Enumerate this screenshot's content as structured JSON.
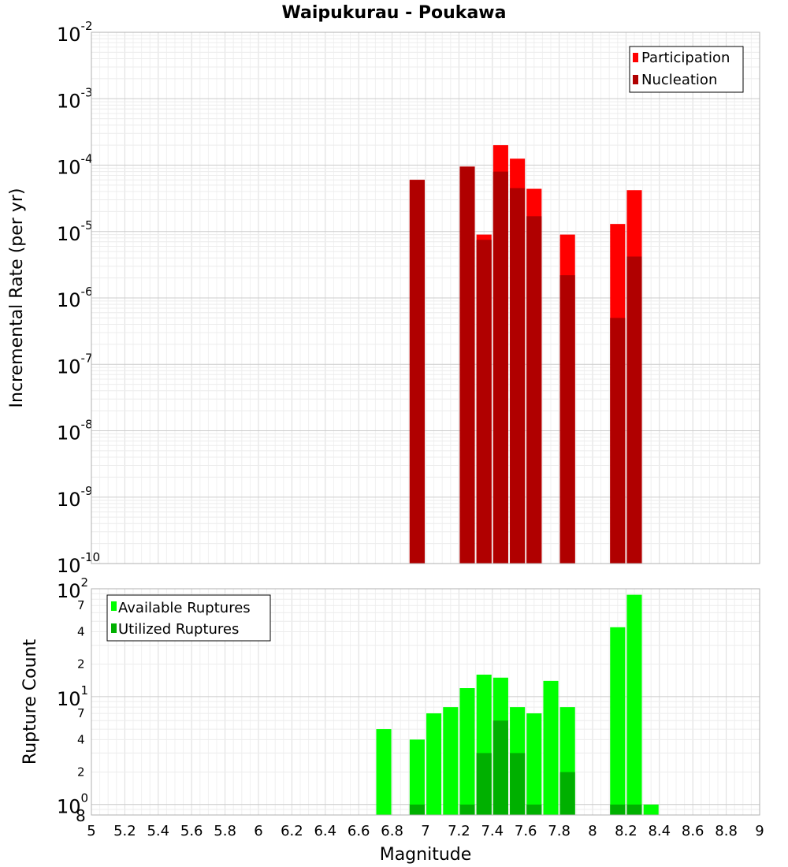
{
  "chart_data": [
    {
      "type": "bar",
      "panel": "top",
      "title": "Waipukurau - Poukawa",
      "ylabel": "Incremental Rate (per yr)",
      "yscale": "log",
      "ylim": [
        1e-10,
        0.01
      ],
      "xlim": [
        5,
        9
      ],
      "grid": true,
      "legend_position": "top-right",
      "y_tick_exponents": [
        "-10",
        "-9",
        "-8",
        "-7",
        "-6",
        "-5",
        "-4",
        "-3",
        "-2"
      ],
      "y_tick_base": "10",
      "bar_width": 0.09,
      "series": [
        {
          "name": "Participation",
          "color": "#ff0000",
          "points": [
            {
              "x": 6.95,
              "y": 6e-05
            },
            {
              "x": 7.25,
              "y": 9.5e-05
            },
            {
              "x": 7.35,
              "y": 9e-06
            },
            {
              "x": 7.45,
              "y": 0.0002
            },
            {
              "x": 7.55,
              "y": 0.000125
            },
            {
              "x": 7.65,
              "y": 4.4e-05
            },
            {
              "x": 7.85,
              "y": 9e-06
            },
            {
              "x": 8.15,
              "y": 1.3e-05
            },
            {
              "x": 8.25,
              "y": 4.2e-05
            }
          ]
        },
        {
          "name": "Nucleation",
          "color": "#b00000",
          "points": [
            {
              "x": 6.95,
              "y": 6e-05
            },
            {
              "x": 7.25,
              "y": 9.5e-05
            },
            {
              "x": 7.35,
              "y": 7.5e-06
            },
            {
              "x": 7.45,
              "y": 8e-05
            },
            {
              "x": 7.55,
              "y": 4.5e-05
            },
            {
              "x": 7.65,
              "y": 1.7e-05
            },
            {
              "x": 7.85,
              "y": 2.2e-06
            },
            {
              "x": 8.15,
              "y": 5e-07
            },
            {
              "x": 8.25,
              "y": 4.2e-06
            }
          ]
        }
      ]
    },
    {
      "type": "bar",
      "panel": "bottom",
      "ylabel": "Rupture Count",
      "xlabel": "Magnitude",
      "yscale": "log",
      "ylim": [
        0.8,
        100
      ],
      "xlim": [
        5,
        9
      ],
      "grid": true,
      "legend_position": "top-left",
      "bar_width": 0.09,
      "x_ticks": [
        "5",
        "5.2",
        "5.4",
        "5.6",
        "5.8",
        "6",
        "6.2",
        "6.4",
        "6.6",
        "6.8",
        "7",
        "7.2",
        "7.4",
        "7.6",
        "7.8",
        "8",
        "8.2",
        "8.4",
        "8.6",
        "8.8",
        "9"
      ],
      "y_major_ticks": [
        {
          "value": 1,
          "base": "10",
          "exp": "0"
        },
        {
          "value": 10,
          "base": "10",
          "exp": "1"
        },
        {
          "value": 100,
          "base": "10",
          "exp": "2"
        }
      ],
      "y_minor_labels": [
        {
          "value": 0.8,
          "label": "8"
        },
        {
          "value": 2,
          "label": "2"
        },
        {
          "value": 4,
          "label": "4"
        },
        {
          "value": 7,
          "label": "7"
        },
        {
          "value": 20,
          "label": "2"
        },
        {
          "value": 40,
          "label": "4"
        },
        {
          "value": 70,
          "label": "7"
        }
      ],
      "series": [
        {
          "name": "Available Ruptures",
          "color": "#00ff00",
          "points": [
            {
              "x": 6.75,
              "y": 5
            },
            {
              "x": 6.95,
              "y": 4
            },
            {
              "x": 7.05,
              "y": 7
            },
            {
              "x": 7.15,
              "y": 8
            },
            {
              "x": 7.25,
              "y": 12
            },
            {
              "x": 7.35,
              "y": 16
            },
            {
              "x": 7.45,
              "y": 15
            },
            {
              "x": 7.55,
              "y": 8
            },
            {
              "x": 7.65,
              "y": 7
            },
            {
              "x": 7.75,
              "y": 14
            },
            {
              "x": 7.85,
              "y": 8
            },
            {
              "x": 8.15,
              "y": 44
            },
            {
              "x": 8.25,
              "y": 88
            },
            {
              "x": 8.35,
              "y": 1
            }
          ]
        },
        {
          "name": "Utilized Ruptures",
          "color": "#00b000",
          "points": [
            {
              "x": 6.95,
              "y": 1
            },
            {
              "x": 7.25,
              "y": 1
            },
            {
              "x": 7.35,
              "y": 3
            },
            {
              "x": 7.45,
              "y": 6
            },
            {
              "x": 7.55,
              "y": 3
            },
            {
              "x": 7.65,
              "y": 1
            },
            {
              "x": 7.85,
              "y": 2
            },
            {
              "x": 8.15,
              "y": 1
            },
            {
              "x": 8.25,
              "y": 1
            }
          ]
        }
      ]
    }
  ]
}
